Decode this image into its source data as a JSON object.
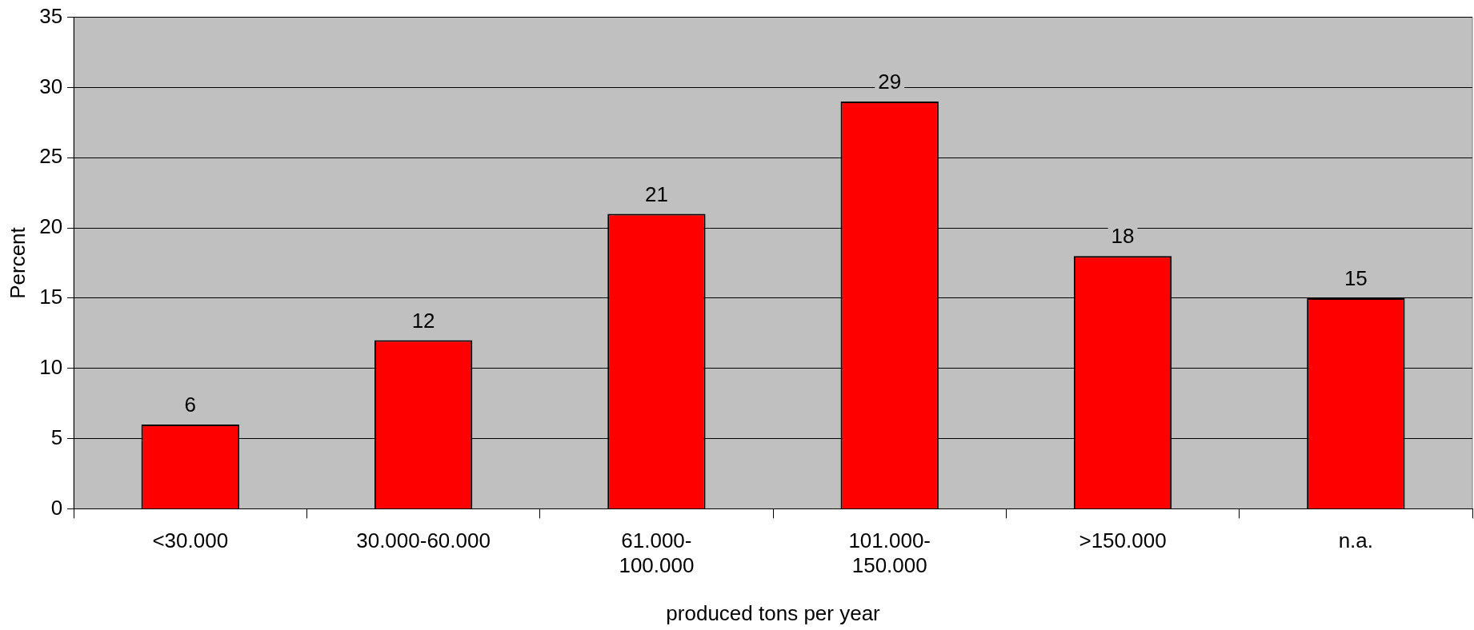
{
  "chart_data": {
    "type": "bar",
    "xlabel": "produced tons per year",
    "ylabel": "Percent",
    "categories": [
      "<30.000",
      "30.000-60.000",
      "61.000-100.000",
      "101.000-150.000",
      ">150.000",
      "n.a."
    ],
    "values": [
      6,
      12,
      21,
      29,
      18,
      15
    ],
    "color": "#ff0000",
    "ylim": [
      0,
      35
    ],
    "yticks": [
      0,
      5,
      10,
      15,
      20,
      25,
      30,
      35
    ],
    "grid": "y",
    "legend": false,
    "data_labels": true
  }
}
